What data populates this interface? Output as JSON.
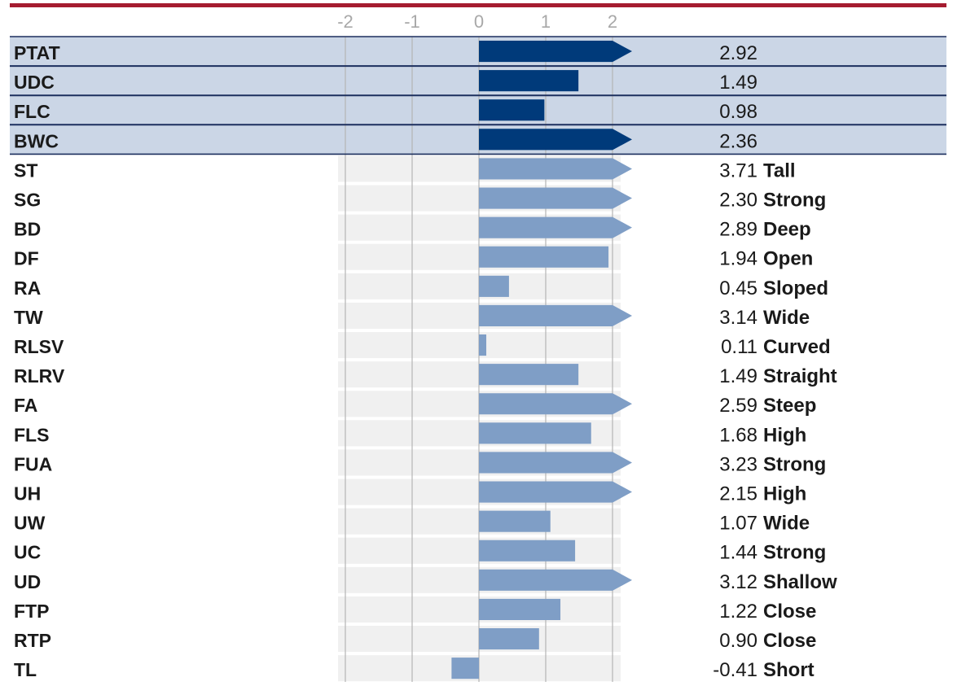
{
  "colors": {
    "top_rule": "#a51c30",
    "header_row_bg": "#cbd6e6",
    "header_row_border": "#1c2f5e",
    "header_bar": "#003a7a",
    "bar": "#7f9ec6",
    "track_band": "#f0f0f0",
    "gridline": "#b4b4b4",
    "tick_label": "#a8a8a8",
    "text": "#1a1a1a"
  },
  "chart_data": {
    "type": "bar",
    "orientation": "horizontal",
    "xlim": [
      -2,
      2
    ],
    "x_ticks": [
      "-2",
      "-1",
      "0",
      "1",
      "2"
    ],
    "grid": true,
    "overflow_marker": "arrow when value exceeds 2",
    "categories": [
      "PTAT",
      "UDC",
      "FLC",
      "BWC",
      "ST",
      "SG",
      "BD",
      "DF",
      "RA",
      "TW",
      "RLSV",
      "RLRV",
      "FA",
      "FLS",
      "FUA",
      "UH",
      "UW",
      "UC",
      "UD",
      "FTP",
      "RTP",
      "TL"
    ],
    "values": [
      2.92,
      1.49,
      0.98,
      2.36,
      3.71,
      2.3,
      2.89,
      1.94,
      0.45,
      3.14,
      0.11,
      1.49,
      2.59,
      1.68,
      3.23,
      2.15,
      1.07,
      1.44,
      3.12,
      1.22,
      0.9,
      -0.41
    ],
    "value_labels": [
      "2.92",
      "1.49",
      "0.98",
      "2.36",
      "3.71",
      "2.30",
      "2.89",
      "1.94",
      "0.45",
      "3.14",
      "0.11",
      "1.49",
      "2.59",
      "1.68",
      "3.23",
      "2.15",
      "1.07",
      "1.44",
      "3.12",
      "1.22",
      "0.90",
      "-0.41"
    ],
    "descriptors": [
      "",
      "",
      "",
      "",
      "Tall",
      "Strong",
      "Deep",
      "Open",
      "Sloped",
      "Wide",
      "Curved",
      "Straight",
      "Steep",
      "High",
      "Strong",
      "High",
      "Wide",
      "Strong",
      "Shallow",
      "Close",
      "Close",
      "Short"
    ],
    "highlighted_rows": [
      "PTAT",
      "UDC",
      "FLC",
      "BWC"
    ]
  }
}
